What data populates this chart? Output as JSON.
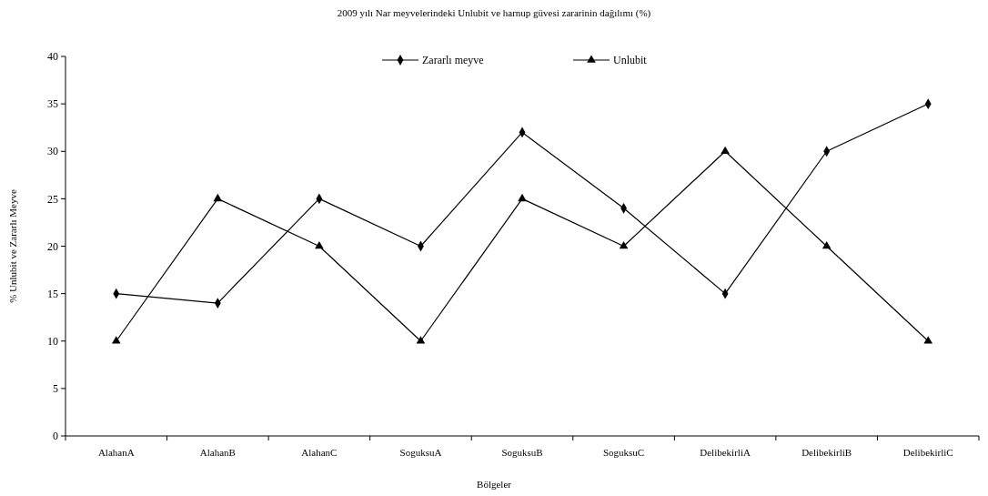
{
  "chart_data": {
    "type": "line",
    "title": "2009 yılı Nar meyvelerindeki Unlubit ve harnup güvesi zararinin dağılımı (%)",
    "xlabel": "Bölgeler",
    "ylabel": "% Unlubit ve Zararlı Meyve",
    "categories": [
      "AlahanA",
      "AlahanB",
      "AlahanC",
      "SoguksuA",
      "SoguksuB",
      "SoguksuC",
      "DelibekirliA",
      "DelibekirliB",
      "DelibekirliC"
    ],
    "series": [
      {
        "name": "Zararlı meyve",
        "color": "#000000",
        "marker": "diamond",
        "values": [
          15,
          14,
          25,
          20,
          32,
          24,
          15,
          30,
          35
        ]
      },
      {
        "name": "Unlubit",
        "color": "#000000",
        "marker": "triangle",
        "values": [
          10,
          25,
          20,
          10,
          25,
          20,
          30,
          20,
          10
        ]
      }
    ],
    "ylim": [
      0,
      40
    ],
    "yticks": [
      0,
      5,
      10,
      15,
      20,
      25,
      30,
      35,
      40
    ],
    "grid": false,
    "legend": "top"
  }
}
